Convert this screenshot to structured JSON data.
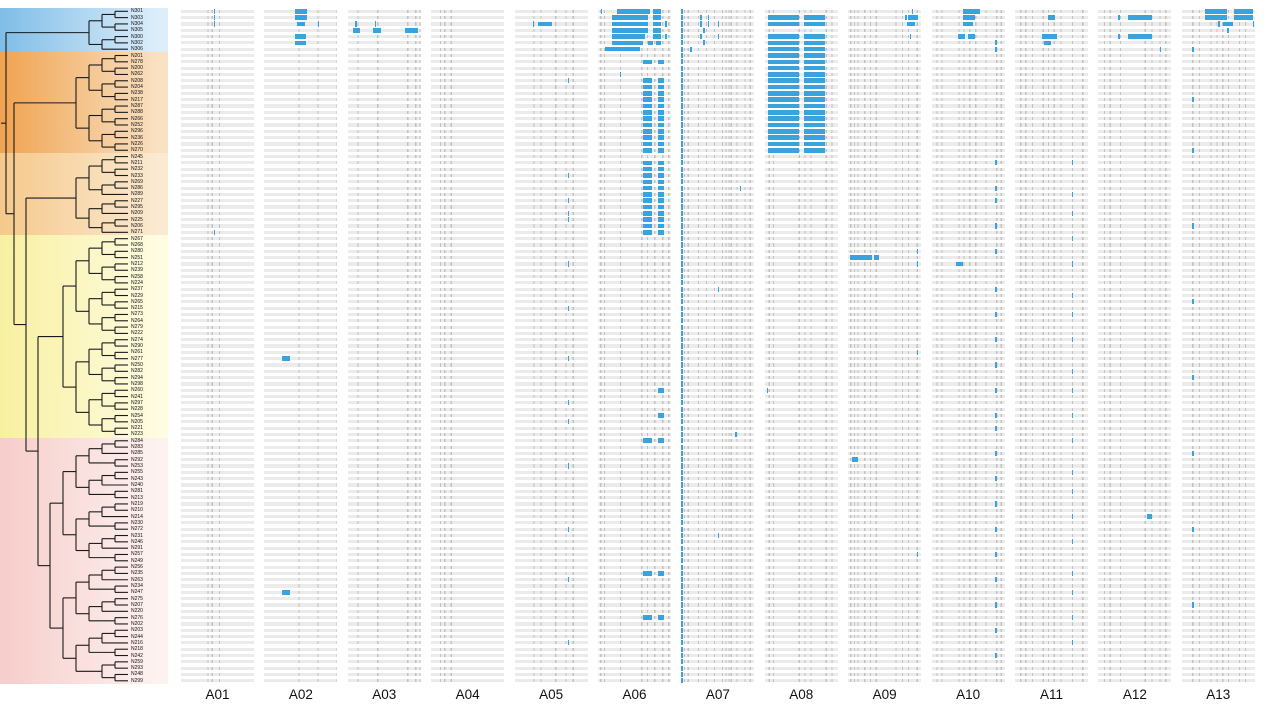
{
  "chart_data": {
    "type": "heatmap",
    "title": "",
    "description": "Phylogenetic tree of 107 taxa with five colored clade blocks, aligned to 13 feature-track panels (A01-A13); gray ticks are reference features, blue marks are highlighted features",
    "columns": [
      "A01",
      "A02",
      "A03",
      "A04",
      "A05",
      "A06",
      "A07",
      "A08",
      "A09",
      "A10",
      "A11",
      "A12",
      "A13"
    ],
    "rows": [
      "N301",
      "N303",
      "N304",
      "N305",
      "N300",
      "N302",
      "N306",
      "N201",
      "N278",
      "N200",
      "N262",
      "N208",
      "N204",
      "N238",
      "N217",
      "N287",
      "N288",
      "N266",
      "N252",
      "N296",
      "N236",
      "N226",
      "N270",
      "N245",
      "N211",
      "N232",
      "N233",
      "N269",
      "N286",
      "N289",
      "N227",
      "N295",
      "N209",
      "N225",
      "N206",
      "N271",
      "N267",
      "N268",
      "N280",
      "N251",
      "N212",
      "N239",
      "N258",
      "N224",
      "N237",
      "N229",
      "N265",
      "N215",
      "N273",
      "N264",
      "N279",
      "N222",
      "N274",
      "N290",
      "N261",
      "N277",
      "N250",
      "N282",
      "N294",
      "N298",
      "N260",
      "N241",
      "N297",
      "N228",
      "N254",
      "N205",
      "N221",
      "N223",
      "N284",
      "N283",
      "N285",
      "N292",
      "N253",
      "N255",
      "N243",
      "N240",
      "N281",
      "N213",
      "N219",
      "N210",
      "N214",
      "N230",
      "N272",
      "N231",
      "N246",
      "N291",
      "N257",
      "N249",
      "N256",
      "N235",
      "N263",
      "N234",
      "N247",
      "N275",
      "N207",
      "N220",
      "N276",
      "N202",
      "N203",
      "N244",
      "N216",
      "N218",
      "N242",
      "N259",
      "N293",
      "N248",
      "N299"
    ],
    "clades": [
      {
        "name": "clade-1",
        "rows": [
          1,
          7
        ],
        "color_left": "#7fbde7",
        "color_right": "#ddeefa"
      },
      {
        "name": "clade-2",
        "rows": [
          8,
          23
        ],
        "color_left": "#f0a350",
        "color_right": "#f9e2c4"
      },
      {
        "name": "clade-3",
        "rows": [
          24,
          36
        ],
        "color_left": "#f5c98b",
        "color_right": "#fbead2"
      },
      {
        "name": "clade-4",
        "rows": [
          37,
          68
        ],
        "color_left": "#f8f0a0",
        "color_right": "#fefce2"
      },
      {
        "name": "clade-5",
        "rows": [
          69,
          107
        ],
        "color_left": "#f6cdca",
        "color_right": "#fdf2f0"
      }
    ],
    "panels": [
      {
        "label": "A01",
        "ticks": [
          0.36,
          0.42,
          0.52
        ]
      },
      {
        "label": "A02",
        "ticks": [
          0.47,
          0.73,
          0.99
        ]
      },
      {
        "label": "A03",
        "ticks": [
          0.13,
          0.4,
          0.81,
          0.92,
          0.98
        ]
      },
      {
        "label": "A04",
        "ticks": [
          0.12,
          0.18,
          0.27
        ]
      },
      {
        "label": "A05",
        "ticks": [
          0.25,
          0.35,
          0.55,
          0.69,
          0.79
        ]
      },
      {
        "label": "A06",
        "ticks": [
          0.03,
          0.08,
          0.3,
          0.59,
          0.67,
          0.77,
          0.88,
          0.96
        ]
      },
      {
        "label": "A07",
        "ticks": [
          0.04,
          0.09,
          0.23,
          0.34,
          0.45,
          0.56,
          0.61,
          0.65,
          0.68,
          0.76,
          0.87,
          0.94
        ]
      },
      {
        "label": "A08",
        "ticks": [
          0.05,
          0.11,
          0.46,
          0.54,
          0.62,
          0.83,
          0.91
        ]
      },
      {
        "label": "A09",
        "ticks": [
          0.03,
          0.08,
          0.13,
          0.22,
          0.3,
          0.38,
          0.65,
          0.74,
          0.82,
          0.94
        ]
      },
      {
        "label": "A10",
        "ticks": [
          0.06,
          0.13,
          0.36,
          0.43,
          0.51,
          0.59,
          0.73,
          0.88,
          0.94
        ]
      },
      {
        "label": "A11",
        "ticks": [
          0.07,
          0.14,
          0.23,
          0.38,
          0.45,
          0.53,
          0.62,
          0.78,
          0.92
        ]
      },
      {
        "label": "A12",
        "ticks": [
          0.08,
          0.16,
          0.3,
          0.64,
          0.73,
          0.84,
          0.92
        ]
      },
      {
        "label": "A13",
        "ticks": [
          0.14,
          0.23,
          0.39,
          0.47,
          0.55,
          0.63,
          0.78,
          0.86
        ]
      }
    ],
    "marks": [
      {
        "p": "A01",
        "rows": [
          1,
          2,
          3
        ],
        "x": 0.45
      },
      {
        "p": "A01",
        "rows": [
          36
        ],
        "x": 0.45
      },
      {
        "p": "A02",
        "rows": [
          1,
          2
        ],
        "x": 0.42,
        "w": 0.17
      },
      {
        "p": "A02",
        "rows": [
          3
        ],
        "x": 0.44,
        "w": 0.12
      },
      {
        "p": "A02",
        "rows": [
          3
        ],
        "x": 0.73
      },
      {
        "p": "A02",
        "rows": [
          5,
          6
        ],
        "x": 0.42,
        "w": 0.15
      },
      {
        "p": "A02",
        "rows": [
          56
        ],
        "x": 0.24,
        "w": 0.11
      },
      {
        "p": "A02",
        "rows": [
          93
        ],
        "x": 0.24,
        "w": 0.11
      },
      {
        "p": "A03",
        "rows": [
          3
        ],
        "x": 0.1
      },
      {
        "p": "A03",
        "rows": [
          3
        ],
        "x": 0.37
      },
      {
        "p": "A03",
        "rows": [
          4
        ],
        "x": 0.07,
        "w": 0.09
      },
      {
        "p": "A03",
        "rows": [
          4
        ],
        "x": 0.35,
        "w": 0.1
      },
      {
        "p": "A03",
        "rows": [
          4
        ],
        "x": 0.78,
        "w": 0.18
      },
      {
        "p": "A05",
        "rows": [
          3
        ],
        "x": 0.25
      },
      {
        "p": "A05",
        "rows": [
          3
        ],
        "x": 0.32,
        "w": 0.19
      },
      {
        "p": "A05",
        "rows": [
          12,
          27,
          31,
          33,
          34,
          41,
          48,
          56,
          63,
          66,
          73,
          83,
          91,
          101
        ],
        "x": 0.73
      },
      {
        "p": "A06",
        "rows": [
          1
        ],
        "x": 0.04
      },
      {
        "p": "A06",
        "rows": [
          1
        ],
        "x": 0.26,
        "w": 0.45
      },
      {
        "p": "A06",
        "rows": [
          2,
          3,
          4
        ],
        "x": 0.19,
        "w": 0.5
      },
      {
        "p": "A06",
        "rows": [
          5
        ],
        "x": 0.19,
        "w": 0.45
      },
      {
        "p": "A06",
        "rows": [
          6
        ],
        "x": 0.19,
        "w": 0.42
      },
      {
        "p": "A06",
        "rows": [
          7
        ],
        "x": 0.1,
        "w": 0.48
      },
      {
        "p": "A06",
        "rows": [
          1,
          2,
          3,
          4,
          5
        ],
        "x": 0.76,
        "w": 0.1
      },
      {
        "p": "A06",
        "rows": [
          6
        ],
        "x": 0.68,
        "w": 0.07
      },
      {
        "p": "A06",
        "rows": [
          6
        ],
        "x": 0.79,
        "w": 0.07
      },
      {
        "p": "A06",
        "rows": [
          3,
          5
        ],
        "x": 0.92
      },
      {
        "p": "A06",
        "rows": [
          11
        ],
        "x": 0.3
      },
      {
        "p": "A06",
        "rows": [
          9,
          12,
          13,
          14,
          15,
          16,
          17,
          18,
          19,
          20,
          21,
          22,
          23,
          25,
          26,
          27,
          28,
          29,
          30,
          31,
          32,
          33,
          34,
          35,
          36,
          69,
          90,
          97
        ],
        "x": 0.62,
        "w": 0.12
      },
      {
        "p": "A06",
        "rows": [
          9,
          12,
          13,
          14,
          15,
          16,
          17,
          18,
          19,
          20,
          21,
          22,
          23,
          25,
          26,
          27,
          28,
          29,
          30,
          31,
          32,
          33,
          34,
          35,
          36,
          69,
          90,
          97
        ],
        "x": 0.82,
        "w": 0.08
      },
      {
        "p": "A06",
        "rows": [
          61,
          65
        ],
        "x": 0.82,
        "w": 0.08
      },
      {
        "p": "A07",
        "rows": "all",
        "x": 0.0
      },
      {
        "p": "A07",
        "rows": [
          2,
          3,
          5
        ],
        "x": 0.26
      },
      {
        "p": "A07",
        "rows": [
          2,
          3
        ],
        "x": 0.36
      },
      {
        "p": "A07",
        "rows": [
          3,
          5
        ],
        "x": 0.5
      },
      {
        "p": "A07",
        "rows": [
          4,
          6
        ],
        "x": 0.3
      },
      {
        "p": "A07",
        "rows": [
          7
        ],
        "x": 0.12
      },
      {
        "p": "A07",
        "rows": [
          29
        ],
        "x": 0.8
      },
      {
        "p": "A07",
        "rows": [
          45,
          84
        ],
        "x": 0.5
      },
      {
        "p": "A07",
        "rows": [
          68
        ],
        "x": 0.74
      },
      {
        "p": "A08",
        "rows": [
          2,
          3,
          5,
          6,
          7,
          8,
          9,
          10,
          11,
          12,
          13,
          14,
          15,
          16,
          17,
          18,
          19,
          20,
          21,
          22,
          23
        ],
        "x": 0.04,
        "w": 0.43
      },
      {
        "p": "A08",
        "rows": [
          2,
          3,
          5,
          6,
          7,
          8,
          9,
          10,
          11,
          12,
          13,
          14,
          15,
          16,
          17,
          18,
          19,
          20,
          21,
          22,
          23
        ],
        "x": 0.54,
        "w": 0.28
      },
      {
        "p": "A08",
        "rows": [
          61
        ],
        "x": 0.03
      },
      {
        "p": "A09",
        "rows": [
          1
        ],
        "x": 0.87
      },
      {
        "p": "A09",
        "rows": [
          2
        ],
        "x": 0.78
      },
      {
        "p": "A09",
        "rows": [
          2
        ],
        "x": 0.82,
        "w": 0.13
      },
      {
        "p": "A09",
        "rows": [
          3
        ],
        "x": 0.8,
        "w": 0.12
      },
      {
        "p": "A09",
        "rows": [
          5
        ],
        "x": 0.84
      },
      {
        "p": "A09",
        "rows": [
          40
        ],
        "x": 0.02,
        "w": 0.3
      },
      {
        "p": "A09",
        "rows": [
          40
        ],
        "x": 0.35,
        "w": 0.07
      },
      {
        "p": "A09",
        "rows": [
          39,
          41,
          55,
          87
        ],
        "x": 0.94
      },
      {
        "p": "A09",
        "rows": [
          72
        ],
        "x": 0.05,
        "w": 0.08
      },
      {
        "p": "A10",
        "rows": [
          1
        ],
        "x": 0.43,
        "w": 0.23
      },
      {
        "p": "A10",
        "rows": [
          2
        ],
        "x": 0.43,
        "w": 0.16
      },
      {
        "p": "A10",
        "rows": [
          3
        ],
        "x": 0.43,
        "w": 0.14
      },
      {
        "p": "A10",
        "rows": [
          5
        ],
        "x": 0.36,
        "w": 0.1
      },
      {
        "p": "A10",
        "rows": [
          5
        ],
        "x": 0.5,
        "w": 0.1
      },
      {
        "p": "A10",
        "rows": [
          6,
          7
        ],
        "x": 0.87
      },
      {
        "p": "A10",
        "rows": [
          41
        ],
        "x": 0.33,
        "w": 0.1
      },
      {
        "p": "A10",
        "rows": [
          25,
          29,
          31,
          35,
          39,
          45,
          49,
          53,
          57,
          61,
          65,
          67,
          71,
          75,
          79,
          83,
          87,
          91,
          95,
          99,
          103
        ],
        "x": 0.87
      },
      {
        "p": "A11",
        "rows": [
          2
        ],
        "x": 0.45,
        "w": 0.1
      },
      {
        "p": "A11",
        "rows": [
          5
        ],
        "x": 0.37,
        "w": 0.2
      },
      {
        "p": "A11",
        "rows": [
          6
        ],
        "x": 0.4,
        "w": 0.09
      },
      {
        "p": "A11",
        "rows": [
          25,
          30,
          33,
          37,
          41,
          46,
          49,
          53,
          58,
          61,
          65,
          69,
          74,
          77,
          81,
          85,
          90,
          93,
          97,
          101
        ],
        "x": 0.78
      },
      {
        "p": "A12",
        "rows": [
          2,
          5
        ],
        "x": 0.27
      },
      {
        "p": "A12",
        "rows": [
          2,
          5
        ],
        "x": 0.41,
        "w": 0.32
      },
      {
        "p": "A12",
        "rows": [
          7
        ],
        "x": 0.84
      },
      {
        "p": "A12",
        "rows": [
          81
        ],
        "x": 0.66,
        "w": 0.08
      },
      {
        "p": "A13",
        "rows": [
          1,
          2
        ],
        "x": 0.32,
        "w": 0.3
      },
      {
        "p": "A13",
        "rows": [
          1,
          2
        ],
        "x": 0.72,
        "w": 0.26
      },
      {
        "p": "A13",
        "rows": [
          3
        ],
        "x": 0.5
      },
      {
        "p": "A13",
        "rows": [
          3
        ],
        "x": 0.57,
        "w": 0.13
      },
      {
        "p": "A13",
        "rows": [
          3
        ],
        "x": 0.97
      },
      {
        "p": "A13",
        "rows": [
          4
        ],
        "x": 0.62
      },
      {
        "p": "A13",
        "rows": [
          7,
          15,
          23,
          35,
          47,
          59,
          71,
          83,
          95
        ],
        "x": 0.14
      }
    ],
    "legend_position": "none",
    "grid": "off"
  },
  "colors": {
    "highlight_blue": "#3aa2dc",
    "lane_gray": "#ebebeb",
    "tick_gray": "#c2c2c2",
    "tree_line": "#1a1a1a",
    "header_text": "#111111"
  }
}
